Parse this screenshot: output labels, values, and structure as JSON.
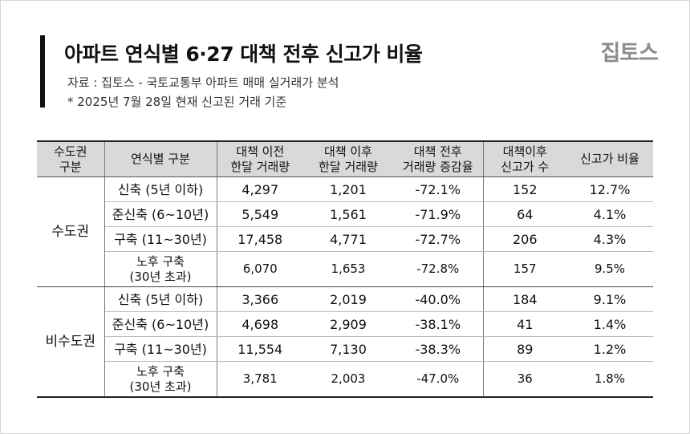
{
  "header": {
    "title": "아파트 연식별 6·27 대책 전후 신고가 비율",
    "source": "자료 : 집토스 - 국토교통부 아파트 매매 실거래가 분석",
    "note": "* 2025년 7월 28일 현재 신고된 거래 기준",
    "logo": "집토스"
  },
  "table": {
    "headers": [
      [
        "수도권",
        "구분"
      ],
      [
        "연식별 구분"
      ],
      [
        "대책 이전",
        "한달 거래량"
      ],
      [
        "대책 이후",
        "한달 거래량"
      ],
      [
        "대책 전후",
        "거래량 증감율"
      ],
      [
        "대책이후",
        "신고가 수"
      ],
      [
        "신고가 비율"
      ]
    ],
    "groups": [
      {
        "region": "수도권",
        "rows": [
          {
            "category": [
              "신축 (5년 이하)"
            ],
            "before": "4,297",
            "after": "1,201",
            "change": "-72.1%",
            "record_count": "152",
            "record_ratio": "12.7%"
          },
          {
            "category": [
              "준신축 (6~10년)"
            ],
            "before": "5,549",
            "after": "1,561",
            "change": "-71.9%",
            "record_count": "64",
            "record_ratio": "4.1%"
          },
          {
            "category": [
              "구축 (11~30년)"
            ],
            "before": "17,458",
            "after": "4,771",
            "change": "-72.7%",
            "record_count": "206",
            "record_ratio": "4.3%"
          },
          {
            "category": [
              "노후 구축",
              "(30년 초과)"
            ],
            "before": "6,070",
            "after": "1,653",
            "change": "-72.8%",
            "record_count": "157",
            "record_ratio": "9.5%"
          }
        ]
      },
      {
        "region": "비수도권",
        "rows": [
          {
            "category": [
              "신축 (5년 이하)"
            ],
            "before": "3,366",
            "after": "2,019",
            "change": "-40.0%",
            "record_count": "184",
            "record_ratio": "9.1%"
          },
          {
            "category": [
              "준신축 (6~10년)"
            ],
            "before": "4,698",
            "after": "2,909",
            "change": "-38.1%",
            "record_count": "41",
            "record_ratio": "1.4%"
          },
          {
            "category": [
              "구축 (11~30년)"
            ],
            "before": "11,554",
            "after": "7,130",
            "change": "-38.3%",
            "record_count": "89",
            "record_ratio": "1.2%"
          },
          {
            "category": [
              "노후 구축",
              "(30년 초과)"
            ],
            "before": "3,781",
            "after": "2,003",
            "change": "-47.0%",
            "record_count": "36",
            "record_ratio": "1.8%"
          }
        ]
      }
    ]
  }
}
